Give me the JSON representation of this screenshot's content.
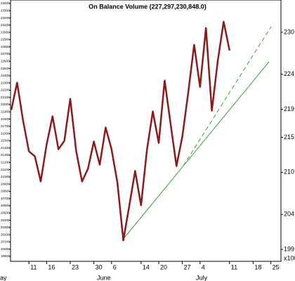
{
  "chart_data": {
    "type": "line",
    "title": "On Balance Volume (227,297,230,848.0)",
    "categories": [
      null,
      null,
      null,
      "11",
      null,
      null,
      "16",
      null,
      null,
      null,
      "23",
      null,
      null,
      null,
      "30",
      null,
      null,
      "6",
      null,
      null,
      null,
      null,
      "14",
      null,
      null,
      "20",
      null,
      null,
      null,
      "27",
      null,
      null,
      "4",
      null,
      null,
      null,
      null,
      "11",
      null,
      null,
      null,
      "18",
      null,
      null,
      "25",
      null
    ],
    "months": [
      "ay",
      "June",
      "July"
    ],
    "unit": "x1000",
    "color": "#8b1a1a",
    "values": [
      218.9,
      222.8,
      217.4,
      213.0,
      212.3,
      208.7,
      214.0,
      218.0,
      213.3,
      214.5,
      220.5,
      213.1,
      208.7,
      210.5,
      214.4,
      211.1,
      216.4,
      213.3,
      208.5,
      200.3,
      205.2,
      210.2,
      205.3,
      213.2,
      218.7,
      214.2,
      223.1,
      217.0,
      210.9,
      215.1,
      221.4,
      228.2,
      222.2,
      230.6,
      218.8,
      225.9,
      231.5,
      227.4,
      null,
      null,
      null,
      null,
      null,
      null,
      null,
      null
    ],
    "ylim": [
      195.3,
      234.6
    ],
    "yticks": [
      199,
      204,
      210,
      215,
      219,
      224,
      230
    ],
    "y2lim": [
      19637.6,
      23448.6
    ],
    "y2ticks": [
      23400,
      23300,
      23200,
      23100,
      23000,
      22900,
      22800,
      22700,
      22600,
      22500,
      22400,
      22300,
      22200,
      22100,
      22000,
      21900,
      21800,
      21700,
      21600,
      21500,
      21400,
      21300,
      21200,
      21100,
      21000,
      20900,
      20800,
      20700,
      20600,
      20500,
      20400,
      20300,
      20200,
      20100,
      20000,
      19900
    ]
  }
}
